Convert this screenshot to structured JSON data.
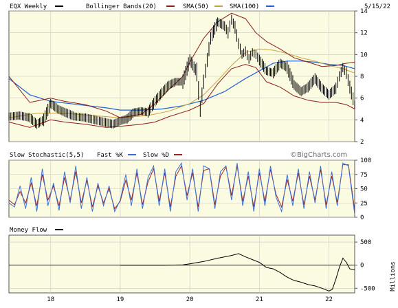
{
  "header": {
    "symbol": "EQX Weekly",
    "bollinger": "Bollinger Bands(20)",
    "sma50": "SMA(50)",
    "sma100": "SMA(100)",
    "date": "5/15/22"
  },
  "colors": {
    "plot_bg": "#fbfbe1",
    "price": "#000000",
    "bollinger": "#8b1a1a",
    "sma50": "#c9a040",
    "sma100": "#1e5fd4",
    "stoch_k": "#3a6fd8",
    "stoch_d": "#a02020",
    "money": "#000000"
  },
  "stoch_header": {
    "title": "Slow Stochastic(5,5)",
    "k_label": "Fast %K",
    "d_label": "Slow %D",
    "brand": "©BigCharts.com"
  },
  "money_header": {
    "title": "Money Flow"
  },
  "x_labels": [
    "18",
    "19",
    "20",
    "21",
    "22"
  ],
  "chart_data": [
    {
      "type": "line",
      "panel": "price",
      "y_ticks": [
        "14",
        "12",
        "10",
        "8",
        "6",
        "4",
        "2"
      ],
      "ylim": [
        2,
        14
      ],
      "x_range": [
        2017.4,
        2022.37
      ],
      "x_tick_positions": [
        2018.0,
        2019.0,
        2020.0,
        2021.0,
        2022.0
      ],
      "series": [
        {
          "name": "EQX Weekly",
          "x": [
            2017.4,
            2017.55,
            2017.7,
            2017.8,
            2017.9,
            2018.0,
            2018.1,
            2018.2,
            2018.35,
            2018.5,
            2018.7,
            2018.9,
            2019.0,
            2019.1,
            2019.2,
            2019.3,
            2019.4,
            2019.5,
            2019.6,
            2019.7,
            2019.8,
            2019.9,
            2020.0,
            2020.1,
            2020.15,
            2020.2,
            2020.25,
            2020.3,
            2020.4,
            2020.5,
            2020.55,
            2020.6,
            2020.65,
            2020.7,
            2020.75,
            2020.8,
            2020.85,
            2020.9,
            2020.95,
            2021.0,
            2021.1,
            2021.2,
            2021.3,
            2021.4,
            2021.5,
            2021.6,
            2021.7,
            2021.8,
            2021.9,
            2022.0,
            2022.1,
            2022.15,
            2022.2,
            2022.25,
            2022.3,
            2022.37
          ],
          "values": [
            4.3,
            4.4,
            4.2,
            3.6,
            4.0,
            5.5,
            5.0,
            4.7,
            4.3,
            4.2,
            3.9,
            3.6,
            3.9,
            4.1,
            4.7,
            4.8,
            4.7,
            5.7,
            6.5,
            7.2,
            7.5,
            7.5,
            9.5,
            8.4,
            5.0,
            7.5,
            9.5,
            11.5,
            13.0,
            12.6,
            12.0,
            13.2,
            12.5,
            11.0,
            10.0,
            10.3,
            9.6,
            10.2,
            10.0,
            9.5,
            8.5,
            8.3,
            9.2,
            8.8,
            7.2,
            6.6,
            7.0,
            7.8,
            6.9,
            6.3,
            6.9,
            8.0,
            8.8,
            8.3,
            7.0,
            5.4
          ]
        },
        {
          "name": "Bollinger Bands(20)",
          "x": [
            2017.4,
            2017.7,
            2018.0,
            2018.2,
            2018.5,
            2018.8,
            2019.0,
            2019.3,
            2019.5,
            2019.7,
            2019.9,
            2020.0,
            2020.2,
            2020.4,
            2020.6,
            2020.8,
            2020.95,
            2021.1,
            2021.3,
            2021.5,
            2021.7,
            2021.9,
            2022.1,
            2022.25,
            2022.37
          ],
          "values": [
            8.0,
            5.6,
            6.0,
            5.7,
            5.4,
            4.8,
            4.2,
            4.5,
            5.5,
            6.8,
            8.0,
            9.3,
            11.5,
            13.0,
            13.8,
            13.3,
            12.0,
            11.2,
            10.5,
            9.7,
            9.3,
            8.9,
            9.0,
            9.2,
            9.3
          ]
        },
        {
          "name": "Bollinger Bands(20) lower",
          "x": [
            2017.4,
            2017.7,
            2018.0,
            2018.2,
            2018.5,
            2018.8,
            2019.0,
            2019.3,
            2019.5,
            2019.7,
            2019.9,
            2020.0,
            2020.2,
            2020.4,
            2020.6,
            2020.8,
            2020.95,
            2021.1,
            2021.3,
            2021.5,
            2021.7,
            2021.9,
            2022.1,
            2022.25,
            2022.37
          ],
          "values": [
            3.8,
            3.3,
            4.0,
            3.8,
            3.6,
            3.3,
            3.4,
            3.6,
            3.8,
            4.3,
            4.7,
            4.9,
            5.5,
            7.3,
            8.7,
            9.1,
            8.8,
            7.5,
            7.0,
            6.2,
            5.8,
            5.6,
            5.6,
            5.4,
            5.0
          ]
        },
        {
          "name": "SMA(50)",
          "x": [
            2017.4,
            2017.8,
            2018.2,
            2018.6,
            2019.0,
            2019.4,
            2019.7,
            2020.0,
            2020.2,
            2020.4,
            2020.6,
            2020.8,
            2021.0,
            2021.2,
            2021.4,
            2021.6,
            2021.8,
            2022.0,
            2022.2,
            2022.37
          ],
          "values": [
            4.2,
            4.6,
            4.6,
            4.4,
            4.2,
            4.4,
            4.8,
            5.5,
            6.3,
            7.6,
            9.0,
            10.2,
            10.5,
            10.4,
            10.1,
            9.7,
            9.4,
            9.0,
            8.7,
            8.3
          ]
        },
        {
          "name": "SMA(100)",
          "x": [
            2017.4,
            2017.7,
            2018.0,
            2018.4,
            2018.8,
            2019.0,
            2019.3,
            2019.6,
            2019.9,
            2020.2,
            2020.5,
            2020.8,
            2021.0,
            2021.2,
            2021.4,
            2021.6,
            2021.8,
            2022.0,
            2022.2,
            2022.37
          ],
          "values": [
            7.8,
            6.3,
            5.7,
            5.4,
            5.1,
            4.9,
            4.9,
            5.0,
            5.3,
            5.8,
            6.6,
            7.8,
            8.5,
            9.2,
            9.4,
            9.4,
            9.3,
            9.1,
            9.0,
            8.7
          ]
        }
      ]
    },
    {
      "type": "line",
      "panel": "stochastic",
      "y_ticks": [
        "100",
        "75",
        "50",
        "25",
        "0"
      ],
      "ylim": [
        0,
        100
      ],
      "series": [
        {
          "name": "Fast %K",
          "x": [
            2017.4,
            2017.48,
            2017.56,
            2017.64,
            2017.72,
            2017.8,
            2017.88,
            2017.96,
            2018.04,
            2018.12,
            2018.2,
            2018.28,
            2018.36,
            2018.44,
            2018.52,
            2018.6,
            2018.68,
            2018.76,
            2018.84,
            2018.92,
            2019.0,
            2019.08,
            2019.16,
            2019.24,
            2019.32,
            2019.4,
            2019.48,
            2019.56,
            2019.64,
            2019.72,
            2019.8,
            2019.88,
            2019.96,
            2020.04,
            2020.12,
            2020.2,
            2020.28,
            2020.36,
            2020.44,
            2020.52,
            2020.6,
            2020.68,
            2020.76,
            2020.84,
            2020.92,
            2021.0,
            2021.08,
            2021.16,
            2021.24,
            2021.32,
            2021.4,
            2021.48,
            2021.56,
            2021.64,
            2021.72,
            2021.8,
            2021.88,
            2021.96,
            2022.04,
            2022.12,
            2022.2,
            2022.28,
            2022.37
          ],
          "values": [
            25,
            18,
            55,
            15,
            70,
            10,
            85,
            20,
            60,
            12,
            80,
            25,
            90,
            15,
            70,
            10,
            60,
            20,
            55,
            10,
            30,
            75,
            20,
            85,
            15,
            70,
            90,
            20,
            85,
            10,
            80,
            95,
            30,
            85,
            10,
            90,
            85,
            15,
            80,
            90,
            30,
            95,
            20,
            80,
            10,
            85,
            20,
            90,
            35,
            10,
            75,
            20,
            85,
            15,
            80,
            25,
            90,
            15,
            80,
            20,
            95,
            90,
            5
          ]
        },
        {
          "name": "Slow %D",
          "x": [
            2017.4,
            2017.48,
            2017.56,
            2017.64,
            2017.72,
            2017.8,
            2017.88,
            2017.96,
            2018.04,
            2018.12,
            2018.2,
            2018.28,
            2018.36,
            2018.44,
            2018.52,
            2018.6,
            2018.68,
            2018.76,
            2018.84,
            2018.92,
            2019.0,
            2019.08,
            2019.16,
            2019.24,
            2019.32,
            2019.4,
            2019.48,
            2019.56,
            2019.64,
            2019.72,
            2019.8,
            2019.88,
            2019.96,
            2020.04,
            2020.12,
            2020.2,
            2020.28,
            2020.36,
            2020.44,
            2020.52,
            2020.6,
            2020.68,
            2020.76,
            2020.84,
            2020.92,
            2021.0,
            2021.08,
            2021.16,
            2021.24,
            2021.32,
            2021.4,
            2021.48,
            2021.56,
            2021.64,
            2021.72,
            2021.8,
            2021.88,
            2021.96,
            2022.04,
            2022.12,
            2022.2,
            2022.28,
            2022.37
          ],
          "values": [
            30,
            22,
            45,
            25,
            60,
            20,
            75,
            30,
            55,
            20,
            70,
            30,
            80,
            25,
            65,
            18,
            55,
            25,
            50,
            15,
            28,
            65,
            30,
            78,
            22,
            62,
            85,
            28,
            78,
            18,
            72,
            90,
            38,
            78,
            18,
            82,
            85,
            22,
            72,
            88,
            38,
            90,
            28,
            72,
            18,
            78,
            28,
            84,
            40,
            18,
            66,
            28,
            78,
            22,
            72,
            30,
            84,
            22,
            72,
            26,
            92,
            92,
            12
          ]
        }
      ]
    },
    {
      "type": "line",
      "panel": "money_flow",
      "y_ticks": [
        "500",
        "0",
        "-500"
      ],
      "ylabel": "Millions",
      "ylim": [
        -600,
        650
      ],
      "series": [
        {
          "name": "Money Flow",
          "x": [
            2019.0,
            2019.3,
            2019.6,
            2019.9,
            2020.0,
            2020.2,
            2020.4,
            2020.6,
            2020.7,
            2020.8,
            2020.9,
            2021.0,
            2021.1,
            2021.2,
            2021.3,
            2021.4,
            2021.5,
            2021.6,
            2021.7,
            2021.8,
            2021.9,
            2022.0,
            2022.05,
            2022.1,
            2022.15,
            2022.2,
            2022.25,
            2022.3,
            2022.37
          ],
          "values": [
            0,
            0,
            0,
            5,
            30,
            80,
            150,
            210,
            250,
            180,
            120,
            60,
            -50,
            -80,
            -160,
            -260,
            -330,
            -370,
            -420,
            -450,
            -500,
            -560,
            -520,
            -300,
            -50,
            150,
            60,
            -80,
            -100
          ]
        }
      ]
    }
  ]
}
